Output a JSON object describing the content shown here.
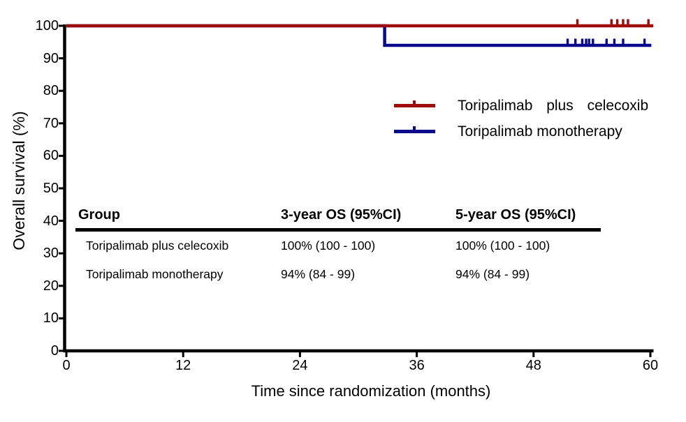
{
  "chart_data": {
    "type": "line",
    "subtype": "kaplan-meier-step",
    "title": "",
    "xlabel": "Time since randomization (months)",
    "ylabel": "Overall survival (%)",
    "xlim": [
      0,
      60
    ],
    "ylim": [
      0,
      100
    ],
    "x_ticks": [
      0,
      12,
      24,
      36,
      48,
      60
    ],
    "y_ticks": [
      0,
      10,
      20,
      30,
      40,
      50,
      60,
      70,
      80,
      90,
      100
    ],
    "grid": false,
    "axis_color": "#000000",
    "legend_position": "right-middle",
    "series": [
      {
        "name": "Toripalimab plus celecoxib",
        "color": "#9E0B0B",
        "steps": [
          [
            0,
            100
          ],
          [
            60.3,
            100
          ]
        ],
        "censor_y": 100,
        "censor_marks_x": [
          52.5,
          56.0,
          56.6,
          57.2,
          57.7,
          59.8
        ]
      },
      {
        "name": "Toripalimab monotherapy",
        "color": "#0A0A8C",
        "steps": [
          [
            0,
            100
          ],
          [
            32.7,
            100
          ],
          [
            32.7,
            94
          ],
          [
            60.1,
            94
          ]
        ],
        "censor_y": 94,
        "censor_marks_x": [
          51.5,
          52.3,
          53.0,
          53.4,
          53.7,
          54.1,
          55.5,
          56.3,
          57.2,
          59.4
        ]
      }
    ]
  },
  "legend": {
    "items": [
      {
        "label": "Toripalimab plus celecoxib",
        "color": "#9E0B0B"
      },
      {
        "label": "Toripalimab monotherapy",
        "color": "#0A0A8C"
      }
    ]
  },
  "table": {
    "headers": [
      "Group",
      "3-year OS (95%CI)",
      "5-year OS (95%CI)"
    ],
    "rows": [
      [
        "Toripalimab plus celecoxib",
        "100% (100 - 100)",
        "100% (100 - 100)"
      ],
      [
        "Toripalimab monotherapy",
        "94% (84 - 99)",
        "94% (84 - 99)"
      ]
    ]
  }
}
